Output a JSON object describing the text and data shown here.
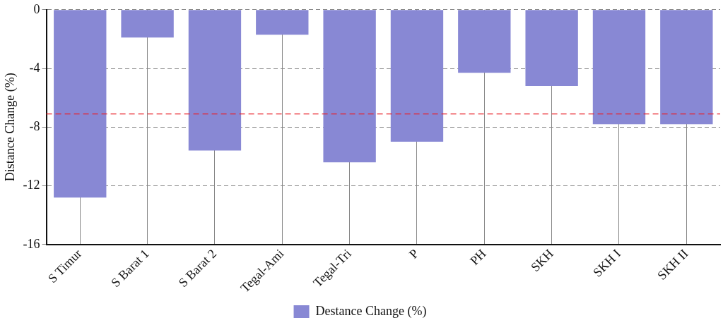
{
  "chart_data": {
    "type": "bar",
    "ylabel": "Distance Change (%)",
    "categories": [
      "S Timur",
      "S Barat 1",
      "S Barat 2",
      "Tegal-Ami",
      "Tegal-Tri",
      "P",
      "PH",
      "SKH",
      "SKH I",
      "SKH II"
    ],
    "series": [
      {
        "name": "Destance Change (%)",
        "color": "#8888d4",
        "values": [
          -12.8,
          -1.9,
          -9.6,
          -1.7,
          -10.4,
          -9.0,
          -4.3,
          -5.2,
          -7.8,
          -7.8
        ]
      }
    ],
    "ylim": [
      -16,
      0
    ],
    "yticks": [
      -16,
      -12,
      -8,
      -4,
      0
    ],
    "grid": true,
    "legend": "bottom",
    "ref_lines": [
      {
        "axis": "y",
        "value": -7.1,
        "color": "#e8202a",
        "line_style": "dashed"
      }
    ]
  }
}
